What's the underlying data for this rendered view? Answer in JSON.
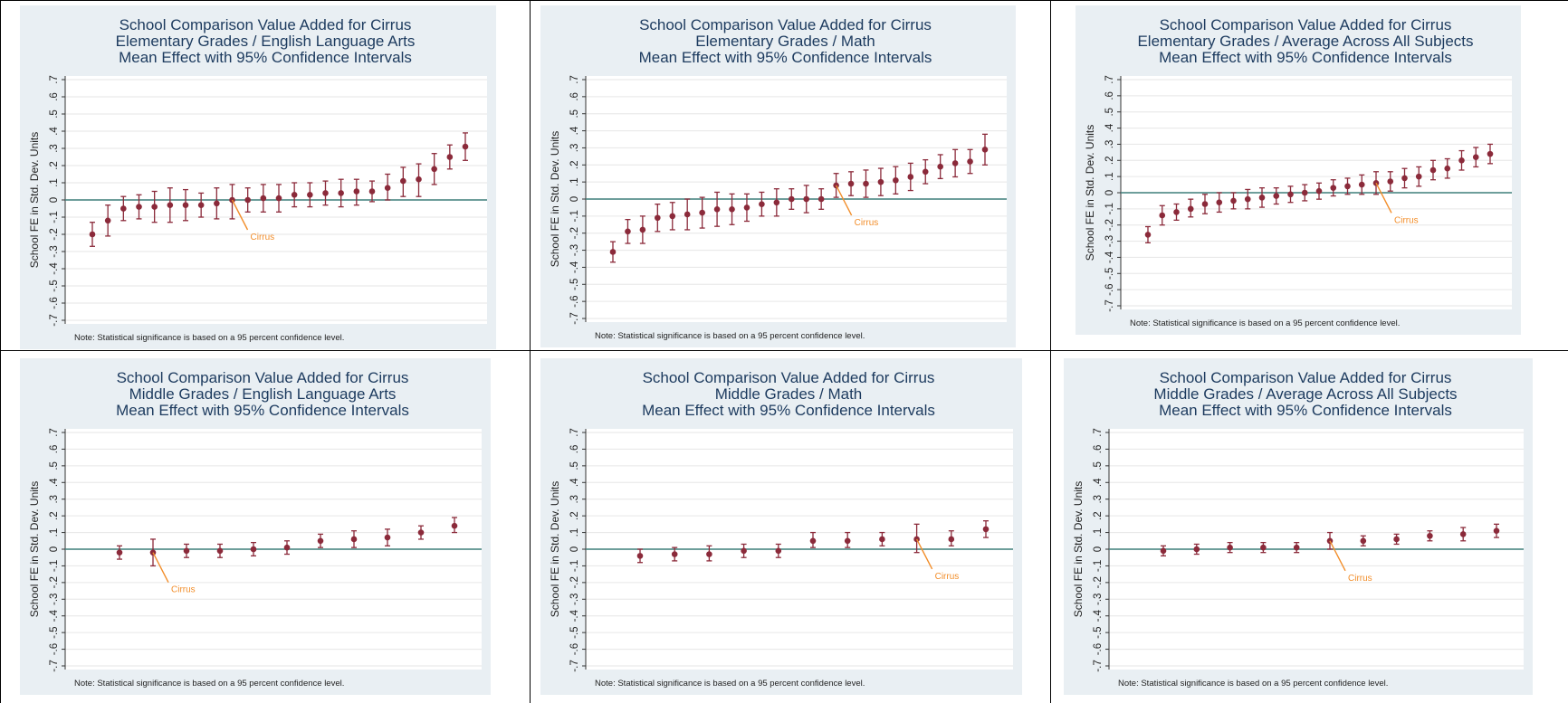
{
  "colors": {
    "panel_bg": "#e9eff3",
    "plot_bg": "#ffffff",
    "title": "#1c3a5e",
    "marker": "#8b2a3a",
    "zero_line": "#3e7f7a",
    "annotation": "#f28e2b",
    "grid": "#e6e6e6"
  },
  "chart_data": [
    {
      "type": "scatter",
      "title": [
        "School Comparison Value Added for Cirrus",
        "Elementary Grades / English Language Arts",
        "Mean Effect with 95% Confidence Intervals"
      ],
      "ylabel": "School FE in Std. Dev. Units",
      "ylim": [
        -0.7,
        0.7
      ],
      "yticks": [
        "-.7",
        "-.6",
        "-.5",
        "-.4",
        "-.3",
        "-.2",
        "-.1",
        "0",
        ".1",
        ".2",
        ".3",
        ".4",
        ".5",
        ".6",
        ".7"
      ],
      "reference_line": 0,
      "annotation": {
        "label": "Cirrus",
        "point_index": 9
      },
      "note": "Note: Statistical significance is based on a 95 percent confidence level.",
      "points": [
        {
          "y": -0.2,
          "lo": -0.27,
          "hi": -0.13
        },
        {
          "y": -0.12,
          "lo": -0.21,
          "hi": -0.03
        },
        {
          "y": -0.05,
          "lo": -0.12,
          "hi": 0.02
        },
        {
          "y": -0.04,
          "lo": -0.11,
          "hi": 0.03
        },
        {
          "y": -0.04,
          "lo": -0.13,
          "hi": 0.05
        },
        {
          "y": -0.03,
          "lo": -0.13,
          "hi": 0.07
        },
        {
          "y": -0.03,
          "lo": -0.12,
          "hi": 0.06
        },
        {
          "y": -0.03,
          "lo": -0.1,
          "hi": 0.04
        },
        {
          "y": -0.02,
          "lo": -0.11,
          "hi": 0.07
        },
        {
          "y": 0.0,
          "lo": -0.11,
          "hi": 0.09
        },
        {
          "y": 0.0,
          "lo": -0.07,
          "hi": 0.07
        },
        {
          "y": 0.01,
          "lo": -0.07,
          "hi": 0.09
        },
        {
          "y": 0.01,
          "lo": -0.07,
          "hi": 0.09
        },
        {
          "y": 0.03,
          "lo": -0.04,
          "hi": 0.1
        },
        {
          "y": 0.03,
          "lo": -0.04,
          "hi": 0.1
        },
        {
          "y": 0.04,
          "lo": -0.03,
          "hi": 0.11
        },
        {
          "y": 0.04,
          "lo": -0.04,
          "hi": 0.12
        },
        {
          "y": 0.05,
          "lo": -0.03,
          "hi": 0.12
        },
        {
          "y": 0.05,
          "lo": -0.01,
          "hi": 0.11
        },
        {
          "y": 0.07,
          "lo": 0.0,
          "hi": 0.15
        },
        {
          "y": 0.11,
          "lo": 0.02,
          "hi": 0.19
        },
        {
          "y": 0.12,
          "lo": 0.02,
          "hi": 0.21
        },
        {
          "y": 0.18,
          "lo": 0.09,
          "hi": 0.27
        },
        {
          "y": 0.25,
          "lo": 0.18,
          "hi": 0.32
        },
        {
          "y": 0.31,
          "lo": 0.23,
          "hi": 0.39
        }
      ]
    },
    {
      "type": "scatter",
      "title": [
        "School Comparison Value Added for Cirrus",
        "Elementary Grades / Math",
        "Mean Effect with 95% Confidence Intervals"
      ],
      "ylabel": "School FE in Std. Dev. Units",
      "ylim": [
        -0.7,
        0.7
      ],
      "yticks": [
        "-.7",
        "-.6",
        "-.5",
        "-.4",
        "-.3",
        "-.2",
        "-.1",
        "0",
        ".1",
        ".2",
        ".3",
        ".4",
        ".5",
        ".6",
        ".7"
      ],
      "reference_line": 0,
      "annotation": {
        "label": "Cirrus",
        "point_index": 15
      },
      "note": "Note: Statistical significance is based on a 95 percent confidence level.",
      "points": [
        {
          "y": -0.31,
          "lo": -0.37,
          "hi": -0.25
        },
        {
          "y": -0.19,
          "lo": -0.26,
          "hi": -0.12
        },
        {
          "y": -0.18,
          "lo": -0.26,
          "hi": -0.1
        },
        {
          "y": -0.11,
          "lo": -0.19,
          "hi": -0.03
        },
        {
          "y": -0.1,
          "lo": -0.18,
          "hi": -0.02
        },
        {
          "y": -0.09,
          "lo": -0.18,
          "hi": 0.0
        },
        {
          "y": -0.08,
          "lo": -0.17,
          "hi": 0.01
        },
        {
          "y": -0.06,
          "lo": -0.16,
          "hi": 0.04
        },
        {
          "y": -0.06,
          "lo": -0.15,
          "hi": 0.03
        },
        {
          "y": -0.05,
          "lo": -0.13,
          "hi": 0.03
        },
        {
          "y": -0.03,
          "lo": -0.1,
          "hi": 0.04
        },
        {
          "y": -0.02,
          "lo": -0.1,
          "hi": 0.06
        },
        {
          "y": 0.0,
          "lo": -0.06,
          "hi": 0.06
        },
        {
          "y": 0.0,
          "lo": -0.08,
          "hi": 0.08
        },
        {
          "y": 0.0,
          "lo": -0.06,
          "hi": 0.06
        },
        {
          "y": 0.08,
          "lo": 0.01,
          "hi": 0.15
        },
        {
          "y": 0.09,
          "lo": 0.02,
          "hi": 0.16
        },
        {
          "y": 0.09,
          "lo": 0.01,
          "hi": 0.17
        },
        {
          "y": 0.1,
          "lo": 0.02,
          "hi": 0.18
        },
        {
          "y": 0.11,
          "lo": 0.03,
          "hi": 0.19
        },
        {
          "y": 0.13,
          "lo": 0.05,
          "hi": 0.21
        },
        {
          "y": 0.16,
          "lo": 0.09,
          "hi": 0.23
        },
        {
          "y": 0.19,
          "lo": 0.12,
          "hi": 0.26
        },
        {
          "y": 0.21,
          "lo": 0.13,
          "hi": 0.29
        },
        {
          "y": 0.22,
          "lo": 0.15,
          "hi": 0.29
        },
        {
          "y": 0.29,
          "lo": 0.2,
          "hi": 0.38
        }
      ]
    },
    {
      "type": "scatter",
      "title": [
        "School Comparison Value Added for Cirrus",
        "Elementary Grades / Average Across All Subjects",
        "Mean Effect with 95% Confidence Intervals"
      ],
      "ylabel": "School FE in Std. Dev. Units",
      "ylim": [
        -0.7,
        0.7
      ],
      "yticks": [
        "-.7",
        "-.6",
        "-.5",
        "-.4",
        "-.3",
        "-.2",
        "-.1",
        "0",
        ".1",
        ".2",
        ".3",
        ".4",
        ".5",
        ".6",
        ".7"
      ],
      "reference_line": 0,
      "annotation": {
        "label": "Cirrus",
        "point_index": 16
      },
      "note": "Note: Statistical significance is based on a 95 percent confidence level.",
      "points": [
        {
          "y": -0.26,
          "lo": -0.31,
          "hi": -0.21
        },
        {
          "y": -0.14,
          "lo": -0.2,
          "hi": -0.08
        },
        {
          "y": -0.12,
          "lo": -0.17,
          "hi": -0.07
        },
        {
          "y": -0.1,
          "lo": -0.15,
          "hi": -0.04
        },
        {
          "y": -0.07,
          "lo": -0.13,
          "hi": -0.01
        },
        {
          "y": -0.06,
          "lo": -0.12,
          "hi": 0.0
        },
        {
          "y": -0.05,
          "lo": -0.1,
          "hi": 0.0
        },
        {
          "y": -0.04,
          "lo": -0.1,
          "hi": 0.02
        },
        {
          "y": -0.03,
          "lo": -0.09,
          "hi": 0.03
        },
        {
          "y": -0.02,
          "lo": -0.07,
          "hi": 0.03
        },
        {
          "y": -0.01,
          "lo": -0.06,
          "hi": 0.04
        },
        {
          "y": 0.0,
          "lo": -0.05,
          "hi": 0.05
        },
        {
          "y": 0.01,
          "lo": -0.04,
          "hi": 0.06
        },
        {
          "y": 0.03,
          "lo": -0.02,
          "hi": 0.08
        },
        {
          "y": 0.04,
          "lo": -0.01,
          "hi": 0.09
        },
        {
          "y": 0.05,
          "lo": -0.01,
          "hi": 0.11
        },
        {
          "y": 0.06,
          "lo": -0.01,
          "hi": 0.13
        },
        {
          "y": 0.07,
          "lo": 0.01,
          "hi": 0.13
        },
        {
          "y": 0.09,
          "lo": 0.03,
          "hi": 0.15
        },
        {
          "y": 0.1,
          "lo": 0.04,
          "hi": 0.16
        },
        {
          "y": 0.14,
          "lo": 0.08,
          "hi": 0.2
        },
        {
          "y": 0.15,
          "lo": 0.09,
          "hi": 0.21
        },
        {
          "y": 0.2,
          "lo": 0.14,
          "hi": 0.26
        },
        {
          "y": 0.22,
          "lo": 0.16,
          "hi": 0.28
        },
        {
          "y": 0.24,
          "lo": 0.18,
          "hi": 0.3
        }
      ]
    },
    {
      "type": "scatter",
      "title": [
        "School Comparison Value Added for Cirrus",
        "Middle Grades / English Language Arts",
        "Mean Effect with 95% Confidence Intervals"
      ],
      "ylabel": "School FE in Std. Dev. Units",
      "ylim": [
        -0.7,
        0.7
      ],
      "yticks": [
        "-.7",
        "-.6",
        "-.5",
        "-.4",
        "-.3",
        "-.2",
        "-.1",
        "0",
        ".1",
        ".2",
        ".3",
        ".4",
        ".5",
        ".6",
        ".7"
      ],
      "reference_line": 0,
      "annotation": {
        "label": "Cirrus",
        "point_index": 1
      },
      "note": "Note: Statistical significance is based on a 95 percent confidence level.",
      "points": [
        {
          "y": -0.02,
          "lo": -0.06,
          "hi": 0.02
        },
        {
          "y": -0.02,
          "lo": -0.1,
          "hi": 0.06
        },
        {
          "y": -0.01,
          "lo": -0.05,
          "hi": 0.03
        },
        {
          "y": -0.01,
          "lo": -0.05,
          "hi": 0.03
        },
        {
          "y": 0.0,
          "lo": -0.04,
          "hi": 0.04
        },
        {
          "y": 0.01,
          "lo": -0.03,
          "hi": 0.05
        },
        {
          "y": 0.05,
          "lo": 0.01,
          "hi": 0.09
        },
        {
          "y": 0.06,
          "lo": 0.01,
          "hi": 0.11
        },
        {
          "y": 0.07,
          "lo": 0.02,
          "hi": 0.12
        },
        {
          "y": 0.1,
          "lo": 0.06,
          "hi": 0.14
        },
        {
          "y": 0.14,
          "lo": 0.1,
          "hi": 0.19
        }
      ]
    },
    {
      "type": "scatter",
      "title": [
        "School Comparison Value Added for Cirrus",
        "Middle Grades / Math",
        "Mean Effect with 95% Confidence Intervals"
      ],
      "ylabel": "School FE in Std. Dev. Units",
      "ylim": [
        -0.7,
        0.7
      ],
      "yticks": [
        "-.7",
        "-.6",
        "-.5",
        "-.4",
        "-.3",
        "-.2",
        "-.1",
        "0",
        ".1",
        ".2",
        ".3",
        ".4",
        ".5",
        ".6",
        ".7"
      ],
      "reference_line": 0,
      "annotation": {
        "label": "Cirrus",
        "point_index": 8
      },
      "note": "Note: Statistical significance is based on a 95 percent confidence level.",
      "points": [
        {
          "y": -0.04,
          "lo": -0.08,
          "hi": 0.0
        },
        {
          "y": -0.03,
          "lo": -0.07,
          "hi": 0.01
        },
        {
          "y": -0.03,
          "lo": -0.07,
          "hi": 0.02
        },
        {
          "y": -0.01,
          "lo": -0.05,
          "hi": 0.03
        },
        {
          "y": -0.01,
          "lo": -0.05,
          "hi": 0.03
        },
        {
          "y": 0.05,
          "lo": 0.01,
          "hi": 0.1
        },
        {
          "y": 0.05,
          "lo": 0.01,
          "hi": 0.1
        },
        {
          "y": 0.06,
          "lo": 0.02,
          "hi": 0.1
        },
        {
          "y": 0.06,
          "lo": -0.02,
          "hi": 0.15
        },
        {
          "y": 0.06,
          "lo": 0.02,
          "hi": 0.11
        },
        {
          "y": 0.12,
          "lo": 0.07,
          "hi": 0.17
        }
      ]
    },
    {
      "type": "scatter",
      "title": [
        "School Comparison Value Added for Cirrus",
        "Middle Grades / Average Across All Subjects",
        "Mean Effect with 95% Confidence Intervals"
      ],
      "ylabel": "School FE in Std. Dev. Units",
      "ylim": [
        -0.7,
        0.7
      ],
      "yticks": [
        "-.7",
        "-.6",
        "-.5",
        "-.4",
        "-.3",
        "-.2",
        "-.1",
        "0",
        ".1",
        ".2",
        ".3",
        ".4",
        ".5",
        ".6",
        ".7"
      ],
      "reference_line": 0,
      "annotation": {
        "label": "Cirrus",
        "point_index": 5
      },
      "note": "Note: Statistical significance is based on a 95 percent confidence level.",
      "points": [
        {
          "y": -0.01,
          "lo": -0.04,
          "hi": 0.02
        },
        {
          "y": 0.0,
          "lo": -0.03,
          "hi": 0.03
        },
        {
          "y": 0.01,
          "lo": -0.02,
          "hi": 0.04
        },
        {
          "y": 0.01,
          "lo": -0.02,
          "hi": 0.04
        },
        {
          "y": 0.01,
          "lo": -0.02,
          "hi": 0.04
        },
        {
          "y": 0.05,
          "lo": 0.0,
          "hi": 0.1
        },
        {
          "y": 0.05,
          "lo": 0.02,
          "hi": 0.08
        },
        {
          "y": 0.06,
          "lo": 0.03,
          "hi": 0.09
        },
        {
          "y": 0.08,
          "lo": 0.05,
          "hi": 0.11
        },
        {
          "y": 0.09,
          "lo": 0.05,
          "hi": 0.13
        },
        {
          "y": 0.11,
          "lo": 0.07,
          "hi": 0.15
        }
      ]
    }
  ]
}
